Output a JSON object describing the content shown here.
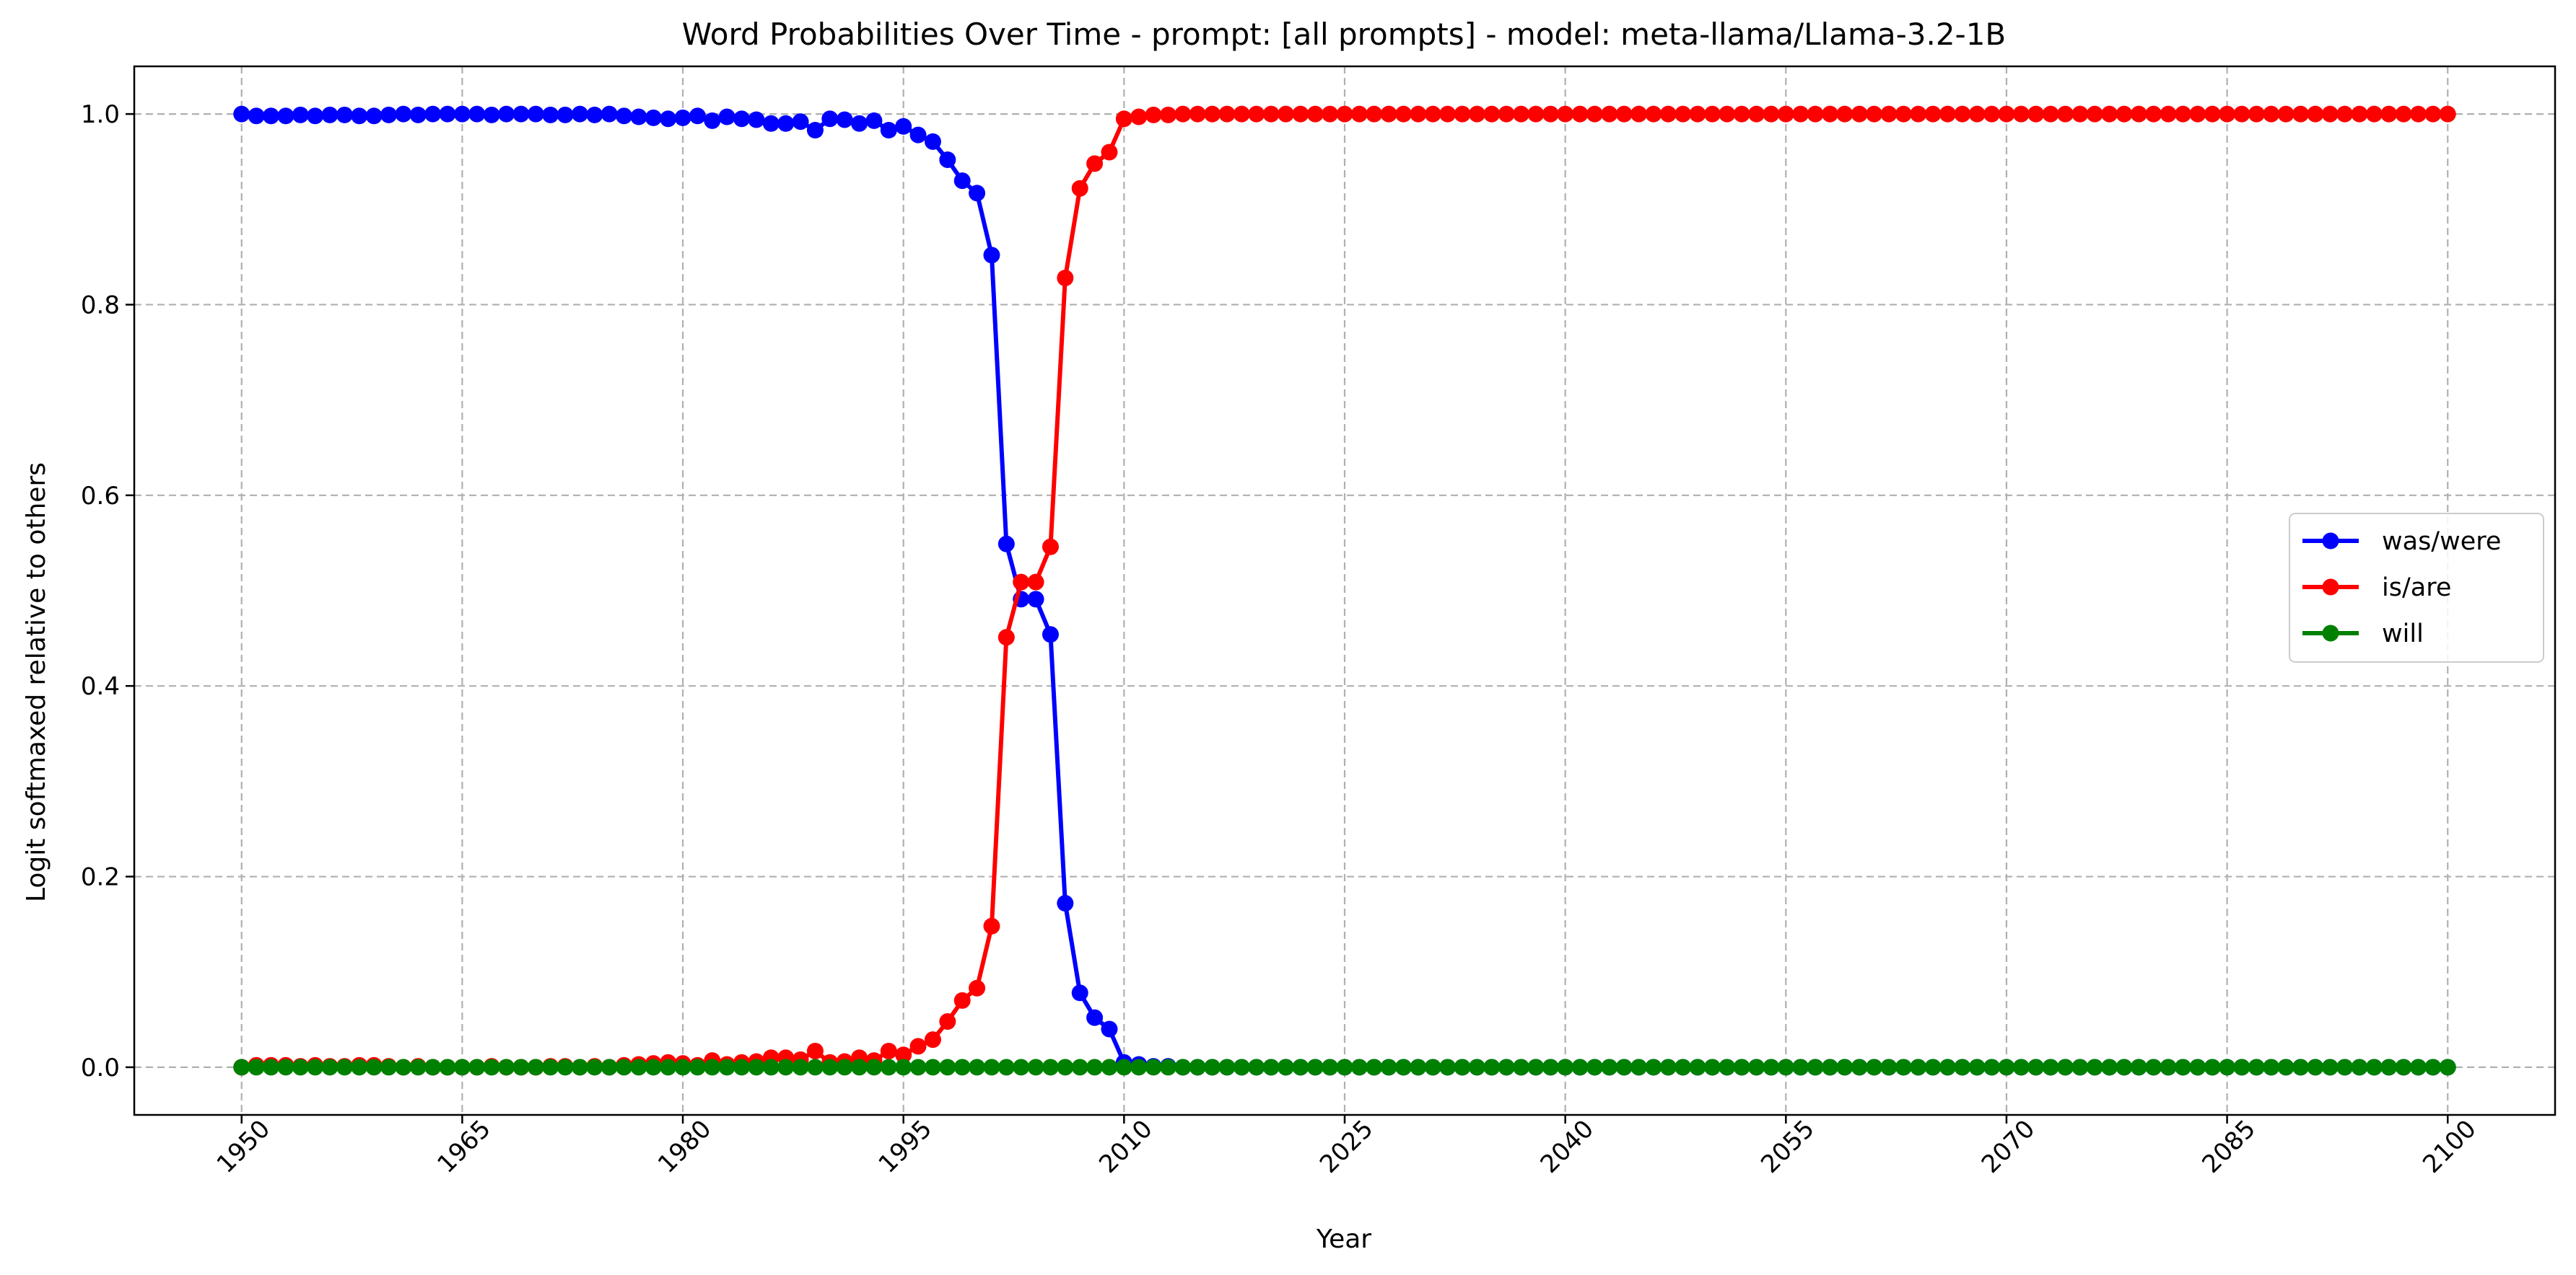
{
  "chart_data": {
    "type": "line",
    "title": "Word Probabilities Over Time - prompt: [all prompts] - model: meta-llama/Llama-3.2-1B",
    "xlabel": "Year",
    "ylabel": "Logit softmaxed relative to others",
    "xlim": [
      1942.7,
      2107.3
    ],
    "ylim": [
      -0.05,
      1.05
    ],
    "x_start": 1950,
    "x_end": 2100,
    "x_ticks": [
      1950,
      1965,
      1980,
      1995,
      2010,
      2025,
      2040,
      2055,
      2070,
      2085,
      2100
    ],
    "x_tick_labels": [
      "1950",
      "1965",
      "1980",
      "1995",
      "2010",
      "2025",
      "2040",
      "2055",
      "2070",
      "2085",
      "2100"
    ],
    "y_ticks": [
      0.0,
      0.2,
      0.4,
      0.6,
      0.8,
      1.0
    ],
    "y_tick_labels": [
      "0.0",
      "0.2",
      "0.4",
      "0.6",
      "0.8",
      "1.0"
    ],
    "x_tick_rotation_deg": 45,
    "grid": true,
    "legend_position": "center-right",
    "series": [
      {
        "name": "was/were",
        "color": "#0000ff",
        "marker": "circle",
        "values": [
          1.0,
          0.998,
          0.998,
          0.998,
          0.999,
          0.998,
          0.999,
          0.999,
          0.998,
          0.998,
          0.999,
          1.0,
          0.999,
          1.0,
          1.0,
          1.0,
          1.0,
          0.999,
          1.0,
          1.0,
          1.0,
          0.999,
          0.999,
          1.0,
          0.999,
          1.0,
          0.998,
          0.997,
          0.996,
          0.995,
          0.996,
          0.998,
          0.993,
          0.997,
          0.995,
          0.994,
          0.99,
          0.99,
          0.992,
          0.983,
          0.995,
          0.994,
          0.99,
          0.993,
          0.983,
          0.987,
          0.978,
          0.971,
          0.952,
          0.93,
          0.917,
          0.852,
          0.549,
          0.491,
          0.491,
          0.454,
          0.172,
          0.078,
          0.052,
          0.04,
          0.005,
          0.003,
          0.001,
          0.001,
          0.0,
          0.0,
          0.0,
          0.0,
          0.0,
          0.0,
          0.0,
          0.0,
          0.0,
          0.0,
          0.0,
          0.0,
          0.0,
          0.0,
          0.0,
          0.0,
          0.0,
          0.0,
          0.0,
          0.0,
          0.0,
          0.0,
          0.0,
          0.0,
          0.0,
          0.0,
          0.0,
          0.0,
          0.0,
          0.0,
          0.0,
          0.0,
          0.0,
          0.0,
          0.0,
          0.0,
          0.0,
          0.0,
          0.0,
          0.0,
          0.0,
          0.0,
          0.0,
          0.0,
          0.0,
          0.0,
          0.0,
          0.0,
          0.0,
          0.0,
          0.0,
          0.0,
          0.0,
          0.0,
          0.0,
          0.0,
          0.0,
          0.0,
          0.0,
          0.0,
          0.0,
          0.0,
          0.0,
          0.0,
          0.0,
          0.0,
          0.0,
          0.0,
          0.0,
          0.0,
          0.0,
          0.0,
          0.0,
          0.0,
          0.0,
          0.0,
          0.0,
          0.0,
          0.0,
          0.0,
          0.0,
          0.0,
          0.0,
          0.0,
          0.0,
          0.0,
          0.0
        ]
      },
      {
        "name": "is/are",
        "color": "#ff0000",
        "marker": "circle",
        "values": [
          0.0,
          0.002,
          0.002,
          0.002,
          0.001,
          0.002,
          0.001,
          0.001,
          0.002,
          0.002,
          0.001,
          0.0,
          0.001,
          0.0,
          0.0,
          0.0,
          0.0,
          0.001,
          0.0,
          0.0,
          0.0,
          0.001,
          0.001,
          0.0,
          0.001,
          0.0,
          0.002,
          0.003,
          0.004,
          0.005,
          0.004,
          0.002,
          0.007,
          0.003,
          0.005,
          0.006,
          0.01,
          0.01,
          0.008,
          0.017,
          0.005,
          0.006,
          0.01,
          0.007,
          0.017,
          0.013,
          0.022,
          0.029,
          0.048,
          0.07,
          0.083,
          0.148,
          0.451,
          0.509,
          0.509,
          0.546,
          0.828,
          0.922,
          0.948,
          0.96,
          0.995,
          0.997,
          0.999,
          0.999,
          1.0,
          1.0,
          1.0,
          1.0,
          1.0,
          1.0,
          1.0,
          1.0,
          1.0,
          1.0,
          1.0,
          1.0,
          1.0,
          1.0,
          1.0,
          1.0,
          1.0,
          1.0,
          1.0,
          1.0,
          1.0,
          1.0,
          1.0,
          1.0,
          1.0,
          1.0,
          1.0,
          1.0,
          1.0,
          1.0,
          1.0,
          1.0,
          1.0,
          1.0,
          1.0,
          1.0,
          1.0,
          1.0,
          1.0,
          1.0,
          1.0,
          1.0,
          1.0,
          1.0,
          1.0,
          1.0,
          1.0,
          1.0,
          1.0,
          1.0,
          1.0,
          1.0,
          1.0,
          1.0,
          1.0,
          1.0,
          1.0,
          1.0,
          1.0,
          1.0,
          1.0,
          1.0,
          1.0,
          1.0,
          1.0,
          1.0,
          1.0,
          1.0,
          1.0,
          1.0,
          1.0,
          1.0,
          1.0,
          1.0,
          1.0,
          1.0,
          1.0,
          1.0,
          1.0,
          1.0,
          1.0,
          1.0,
          1.0,
          1.0,
          1.0,
          1.0,
          1.0
        ]
      },
      {
        "name": "will",
        "color": "#008000",
        "marker": "circle",
        "values": [
          0.0,
          0.0,
          0.0,
          0.0,
          0.0,
          0.0,
          0.0,
          0.0,
          0.0,
          0.0,
          0.0,
          0.0,
          0.0,
          0.0,
          0.0,
          0.0,
          0.0,
          0.0,
          0.0,
          0.0,
          0.0,
          0.0,
          0.0,
          0.0,
          0.0,
          0.0,
          0.0,
          0.0,
          0.0,
          0.0,
          0.0,
          0.0,
          0.0,
          0.0,
          0.0,
          0.0,
          0.0,
          0.0,
          0.0,
          0.0,
          0.0,
          0.0,
          0.0,
          0.0,
          0.0,
          0.0,
          0.0,
          0.0,
          0.0,
          0.0,
          0.0,
          0.0,
          0.0,
          0.0,
          0.0,
          0.0,
          0.0,
          0.0,
          0.0,
          0.0,
          0.0,
          0.0,
          0.0,
          0.0,
          0.0,
          0.0,
          0.0,
          0.0,
          0.0,
          0.0,
          0.0,
          0.0,
          0.0,
          0.0,
          0.0,
          0.0,
          0.0,
          0.0,
          0.0,
          0.0,
          0.0,
          0.0,
          0.0,
          0.0,
          0.0,
          0.0,
          0.0,
          0.0,
          0.0,
          0.0,
          0.0,
          0.0,
          0.0,
          0.0,
          0.0,
          0.0,
          0.0,
          0.0,
          0.0,
          0.0,
          0.0,
          0.0,
          0.0,
          0.0,
          0.0,
          0.0,
          0.0,
          0.0,
          0.0,
          0.0,
          0.0,
          0.0,
          0.0,
          0.0,
          0.0,
          0.0,
          0.0,
          0.0,
          0.0,
          0.0,
          0.0,
          0.0,
          0.0,
          0.0,
          0.0,
          0.0,
          0.0,
          0.0,
          0.0,
          0.0,
          0.0,
          0.0,
          0.0,
          0.0,
          0.0,
          0.0,
          0.0,
          0.0,
          0.0,
          0.0,
          0.0,
          0.0,
          0.0,
          0.0,
          0.0,
          0.0,
          0.0,
          0.0,
          0.0,
          0.0,
          0.0
        ]
      }
    ]
  }
}
